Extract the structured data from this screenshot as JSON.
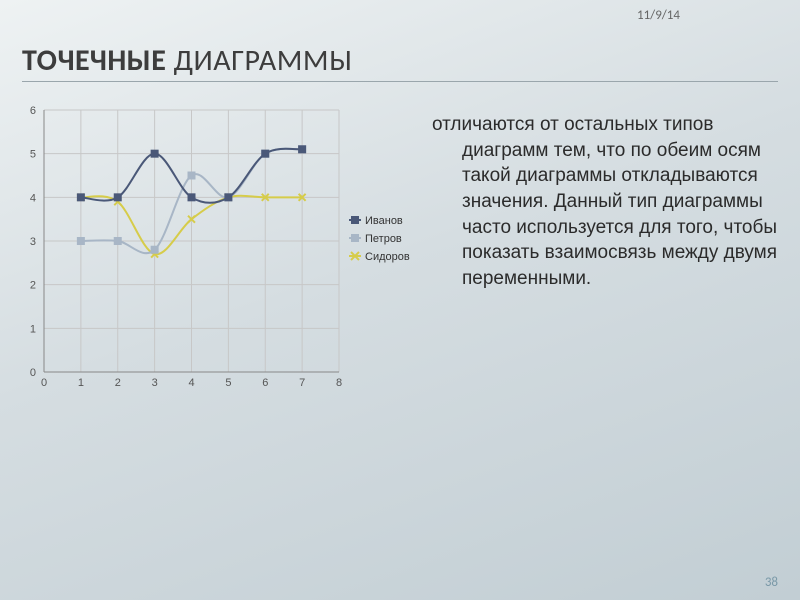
{
  "meta": {
    "date": "11/9/14",
    "slide_number": "38"
  },
  "title": {
    "bold": "ТОЧЕЧНЫЕ",
    "light": " ДИАГРАММЫ"
  },
  "body": "отличаются от остальных типов диаграмм тем, что по обеим осям такой диаграммы откладываются значения. Данный тип диаграммы часто используется для того, чтобы показать взаимосвязь между двумя переменными.",
  "chart": {
    "type": "line-with-markers",
    "background_color": "transparent",
    "plot_border_color": "#888888",
    "grid_color": "#c7c7c7",
    "axis_label_color": "#555555",
    "axis_label_fontsize": 11,
    "x": {
      "min": 0,
      "max": 8,
      "ticks": [
        0,
        1,
        2,
        3,
        4,
        5,
        6,
        7,
        8
      ]
    },
    "y": {
      "min": 0,
      "max": 6,
      "ticks": [
        0,
        1,
        2,
        3,
        4,
        5,
        6
      ]
    },
    "series": [
      {
        "name": "Иванов",
        "color": "#4a5878",
        "marker": "square",
        "x": [
          1,
          2,
          3,
          4,
          5,
          6,
          7
        ],
        "y": [
          4.0,
          4.0,
          5.0,
          4.0,
          4.0,
          5.0,
          5.1
        ]
      },
      {
        "name": "Петров",
        "color": "#a8b6c6",
        "marker": "square",
        "x": [
          1,
          2,
          3,
          4,
          5,
          6,
          7
        ],
        "y": [
          3.0,
          3.0,
          2.8,
          4.5,
          4.0,
          5.0,
          5.1
        ]
      },
      {
        "name": "Сидоров",
        "color": "#d6cc4a",
        "marker": "x",
        "x": [
          1,
          2,
          3,
          4,
          5,
          6,
          7
        ],
        "y": [
          4.0,
          3.9,
          2.7,
          3.5,
          4.0,
          4.0,
          4.0
        ]
      }
    ],
    "legend": {
      "position": "right",
      "fontsize": 11
    },
    "line_width": 2,
    "marker_size": 3.5
  }
}
